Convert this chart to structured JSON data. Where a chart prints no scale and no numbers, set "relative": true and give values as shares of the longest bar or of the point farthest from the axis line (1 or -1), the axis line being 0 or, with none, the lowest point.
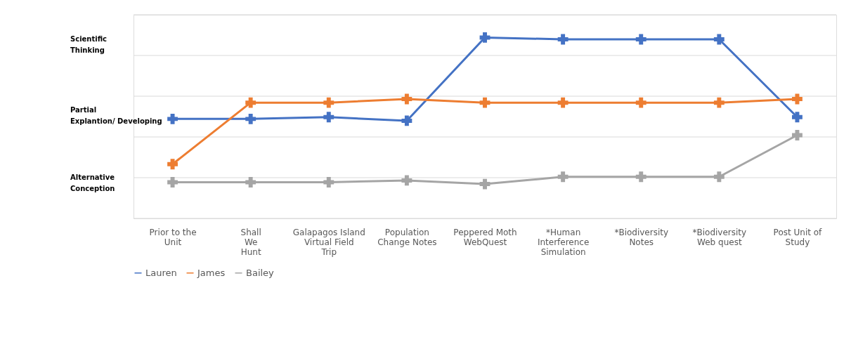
{
  "chart_data": {
    "type": "line",
    "categories": [
      "Prior to the Unit",
      "Shall We Hunt",
      "Galapagos Island Virtual Field Trip",
      "Population Change Notes",
      "Peppered Moth WebQuest",
      "*Human Interference Simulation",
      "*Biodiversity Notes",
      "*Biodiversity Web quest",
      "Post Unit of Study"
    ],
    "series": [
      {
        "name": "Lauren",
        "color": "#4472c4",
        "values": [
          0.55,
          0.55,
          0.56,
          0.54,
          1,
          0.99,
          0.99,
          0.99,
          0.56
        ]
      },
      {
        "name": "James",
        "color": "#ed7d31",
        "values": [
          0.3,
          0.64,
          0.64,
          0.66,
          0.64,
          0.64,
          0.64,
          0.64,
          0.66
        ]
      },
      {
        "name": "Bailey",
        "color": "#a5a5a5",
        "values": [
          0.2,
          0.2,
          0.2,
          0.21,
          0.19,
          0.23,
          0.23,
          0.23,
          0.46
        ]
      }
    ],
    "relative": true,
    "annotations": [
      "Scientific Thinking",
      "Partial Explantion/ Developing",
      "Alternative Conception"
    ],
    "grid": "y",
    "legend": "bottom",
    "marker": "cross",
    "line_style": "solid"
  }
}
